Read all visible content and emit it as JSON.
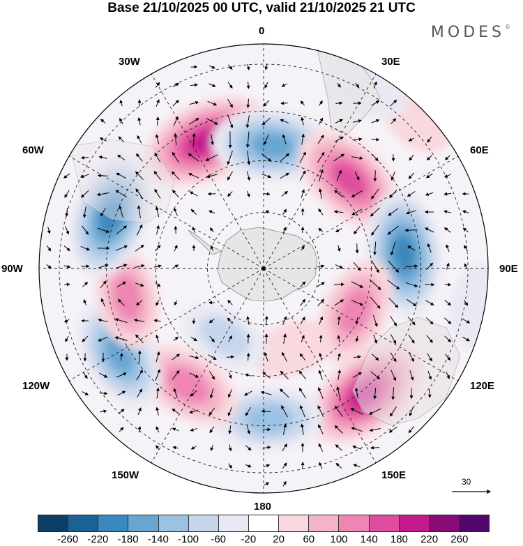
{
  "title": "Base 21/10/2025 00 UTC, valid 21/10/2025 21 UTC",
  "logo": "MODES",
  "logo_mark": "©",
  "longitude_labels": {
    "lon_0": "0",
    "lon_30e": "30E",
    "lon_60e": "60E",
    "lon_90e": "90E",
    "lon_120e": "120E",
    "lon_150e": "150E",
    "lon_180": "180",
    "lon_150w": "150W",
    "lon_120w": "120W",
    "lon_90w": "90W",
    "lon_60w": "60W",
    "lon_30w": "30W"
  },
  "reference_vector": "30",
  "colorbar": {
    "ticks": [
      "-260",
      "-220",
      "-180",
      "-140",
      "-100",
      "-60",
      "-20",
      "20",
      "60",
      "100",
      "140",
      "180",
      "220",
      "260"
    ],
    "colors": [
      "#0d3f66",
      "#1a6293",
      "#3a88bd",
      "#67a6d3",
      "#9bc2e3",
      "#c6d6ec",
      "#e9e9f3",
      "#ffffff",
      "#f9d8de",
      "#f5b3c8",
      "#ee85b2",
      "#e04d9e",
      "#c41a8b",
      "#880b78",
      "#52086a"
    ]
  },
  "anomalies": [
    {
      "lon": 336,
      "dist": 0.62,
      "value": 220
    },
    {
      "lon": 4,
      "dist": 0.55,
      "value": -180
    },
    {
      "lon": 44,
      "dist": 0.55,
      "value": 180
    },
    {
      "lon": 84,
      "dist": 0.63,
      "value": -200
    },
    {
      "lon": 115,
      "dist": 0.45,
      "value": 140
    },
    {
      "lon": 141,
      "dist": 0.72,
      "value": 200
    },
    {
      "lon": 178,
      "dist": 0.67,
      "value": -140
    },
    {
      "lon": 213,
      "dist": 0.62,
      "value": 140
    },
    {
      "lon": 239,
      "dist": 0.75,
      "value": -160
    },
    {
      "lon": 258,
      "dist": 0.62,
      "value": 120
    },
    {
      "lon": 289,
      "dist": 0.72,
      "value": -200
    },
    {
      "lon": 45,
      "dist": 0.95,
      "value": 60
    },
    {
      "lon": 30,
      "dist": 0.93,
      "value": -60
    },
    {
      "lon": 100,
      "dist": 0.96,
      "value": -60
    },
    {
      "lon": 160,
      "dist": 0.38,
      "value": 60
    },
    {
      "lon": 210,
      "dist": 0.35,
      "value": -80
    }
  ]
}
